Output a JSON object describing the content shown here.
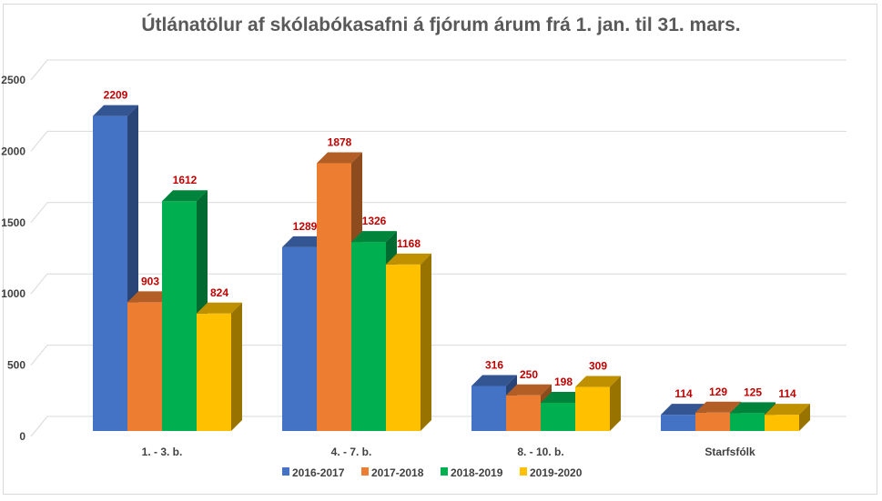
{
  "chart_data": {
    "type": "bar",
    "title": "Útlánatölur af skólabókasafni á fjórum árum frá 1. jan. til 31. mars.",
    "categories": [
      "1. - 3. b.",
      "4. - 7. b.",
      "8. - 10. b.",
      "Starfsfólk"
    ],
    "series": [
      {
        "name": "2016-2017",
        "color": "#4472c4",
        "values": [
          2209,
          1289,
          316,
          114
        ]
      },
      {
        "name": "2017-2018",
        "color": "#ed7d31",
        "values": [
          903,
          1878,
          250,
          129
        ]
      },
      {
        "name": "2018-2019",
        "color": "#00b050",
        "values": [
          1612,
          1326,
          198,
          125
        ]
      },
      {
        "name": "2019-2020",
        "color": "#ffc000",
        "values": [
          824,
          1168,
          309,
          114
        ]
      }
    ],
    "yticks": [
      0,
      500,
      1000,
      1500,
      2000,
      2500
    ],
    "ylim": [
      0,
      2500
    ],
    "grid": true,
    "legend": "bottom",
    "style": "3d-clustered-column",
    "data_label_color": "#c00000"
  }
}
